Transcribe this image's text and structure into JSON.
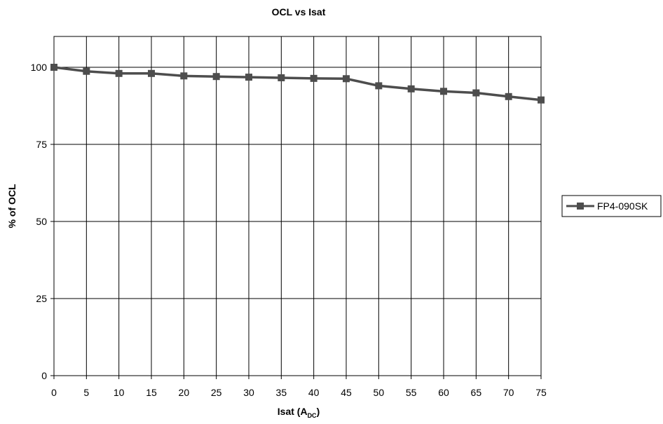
{
  "chart_data": {
    "type": "line",
    "title": "OCL vs Isat",
    "xlabel": "Isat (A",
    "xlabel_sub": "DC",
    "xlabel_close": ")",
    "ylabel": "% of OCL",
    "x": [
      0,
      5,
      10,
      15,
      20,
      25,
      30,
      35,
      40,
      45,
      50,
      55,
      60,
      65,
      70,
      75
    ],
    "xlim": [
      0,
      75
    ],
    "ylim": [
      0,
      110
    ],
    "xticks": [
      0,
      5,
      10,
      15,
      20,
      25,
      30,
      35,
      40,
      45,
      50,
      55,
      60,
      65,
      70,
      75
    ],
    "yticks": [
      0,
      25,
      50,
      75,
      100
    ],
    "grid": true,
    "legend_position": "right",
    "series": [
      {
        "name": "FP4-090SK",
        "color": "#4d4d4d",
        "marker": "square",
        "values": [
          100,
          98.7,
          98.0,
          98.0,
          97.2,
          97.0,
          96.8,
          96.6,
          96.4,
          96.3,
          94.0,
          93.0,
          92.2,
          91.7,
          90.5,
          89.4
        ]
      }
    ]
  }
}
